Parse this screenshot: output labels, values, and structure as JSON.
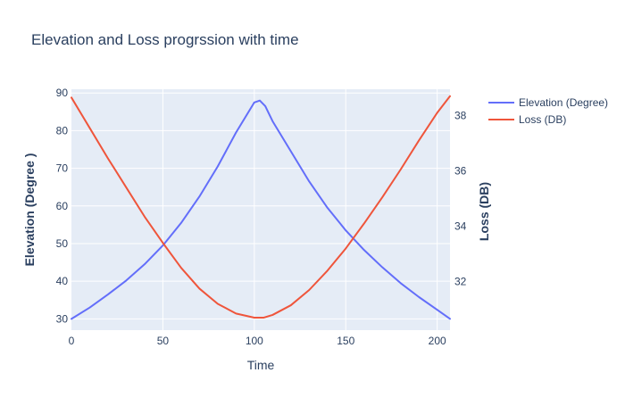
{
  "chart_data": {
    "type": "line",
    "title": "Elevation and Loss progrssion with time",
    "xlabel": "Time",
    "ylabel": "Elevation (Degree )",
    "y2label": "Loss (DB)",
    "xlim": [
      0,
      207
    ],
    "ylim": [
      27,
      91
    ],
    "y2lim": [
      30.25,
      38.95
    ],
    "xticks": [
      "0",
      "50",
      "100",
      "150",
      "200"
    ],
    "yticks": [
      "30",
      "40",
      "50",
      "60",
      "70",
      "80",
      "90"
    ],
    "y2ticks": [
      "32",
      "34",
      "36",
      "38"
    ],
    "grid": true,
    "legend_position": "top-right",
    "series": [
      {
        "name": "Elevation (Degree)",
        "axis": "y",
        "color": "#636efa",
        "x": [
          0,
          10,
          20,
          30,
          40,
          50,
          60,
          70,
          80,
          90,
          100,
          103,
          106,
          110,
          120,
          130,
          140,
          150,
          160,
          170,
          180,
          190,
          200,
          207
        ],
        "y": [
          30,
          33,
          36.5,
          40.2,
          44.5,
          49.5,
          55.5,
          62.5,
          70.5,
          79.5,
          87.5,
          88,
          86.5,
          82.5,
          74.5,
          66.5,
          59.5,
          53.5,
          48.3,
          43.7,
          39.5,
          35.8,
          32.4,
          30
        ]
      },
      {
        "name": "Loss (DB)",
        "axis": "y2",
        "color": "#ef553b",
        "x": [
          0,
          10,
          20,
          30,
          40,
          50,
          60,
          70,
          80,
          90,
          100,
          105,
          110,
          120,
          130,
          140,
          150,
          160,
          170,
          180,
          190,
          200,
          207
        ],
        "y": [
          38.65,
          37.55,
          36.45,
          35.4,
          34.35,
          33.4,
          32.5,
          31.75,
          31.2,
          30.85,
          30.7,
          30.7,
          30.8,
          31.15,
          31.7,
          32.4,
          33.2,
          34.1,
          35.05,
          36.05,
          37.1,
          38.1,
          38.7
        ]
      }
    ]
  }
}
